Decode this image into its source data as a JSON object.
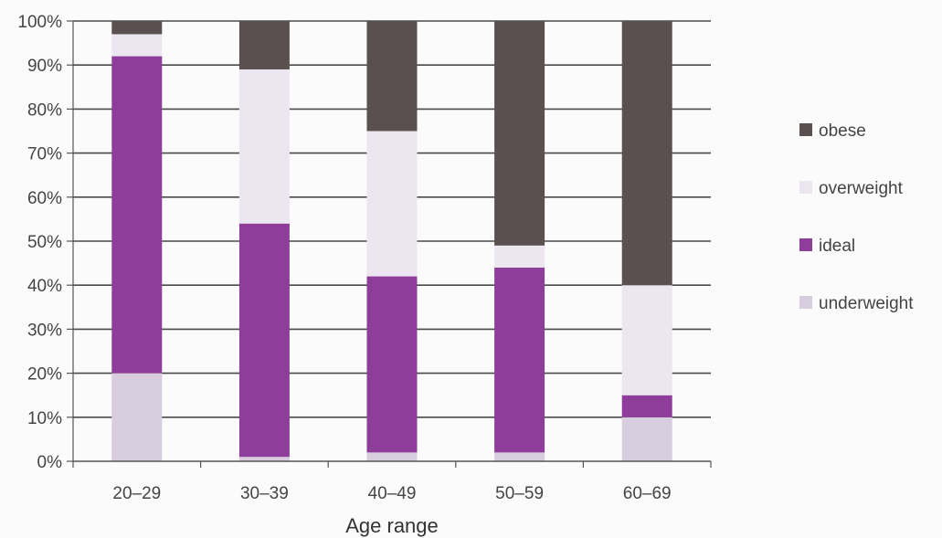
{
  "chart_data": {
    "type": "bar",
    "stacked": true,
    "title": "",
    "xlabel": "Age range",
    "ylabel": "",
    "categories": [
      "20–29",
      "30–39",
      "40–49",
      "50–59",
      "60–69"
    ],
    "ylim": [
      0,
      100
    ],
    "yticks": [
      0,
      10,
      20,
      30,
      40,
      50,
      60,
      70,
      80,
      90,
      100
    ],
    "ytick_labels": [
      "0%",
      "10%",
      "20%",
      "30%",
      "40%",
      "50%",
      "60%",
      "70%",
      "80%",
      "90%",
      "100%"
    ],
    "grid": "horizontal",
    "legend_position": "right",
    "series": [
      {
        "name": "underweight",
        "color": "#d8ccdf",
        "values": [
          20,
          1,
          2,
          2,
          10
        ]
      },
      {
        "name": "ideal",
        "color": "#8e3e9a",
        "values": [
          72,
          53,
          40,
          42,
          5
        ]
      },
      {
        "name": "overweight",
        "color": "#ece6f0",
        "values": [
          5,
          35,
          33,
          5,
          25
        ]
      },
      {
        "name": "obese",
        "color": "#5a5050",
        "values": [
          3,
          11,
          25,
          51,
          60
        ]
      }
    ],
    "legend_order": [
      "obese",
      "overweight",
      "ideal",
      "underweight"
    ]
  }
}
